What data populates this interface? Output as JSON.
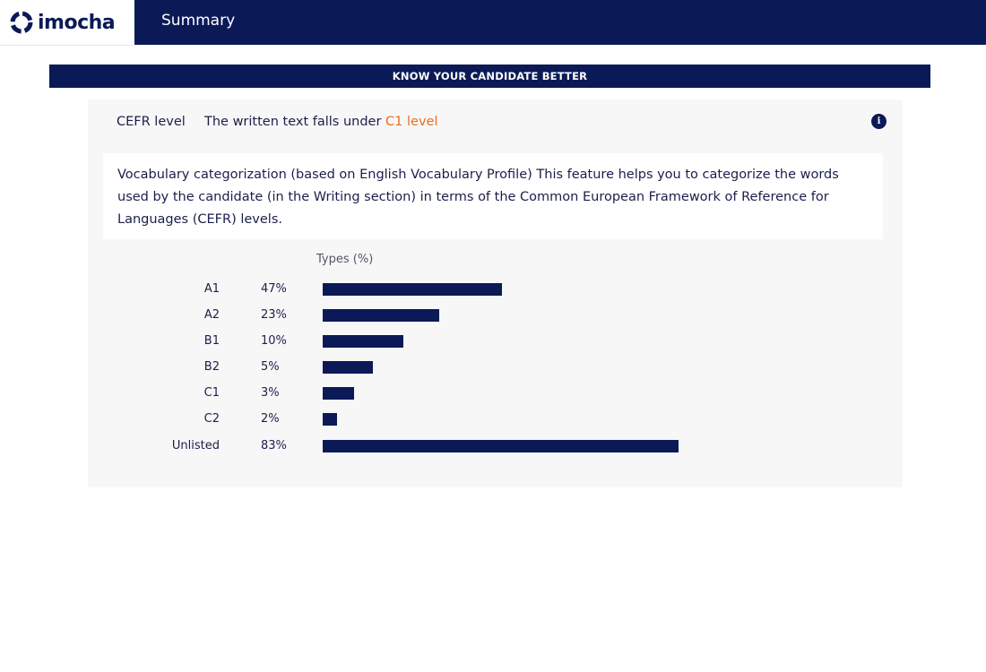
{
  "header": {
    "logo_text": "imocha",
    "logo_icon": "imocha-logo-icon",
    "page_title": "Summary"
  },
  "banner": {
    "title": "KNOW YOUR CANDIDATE BETTER"
  },
  "cefr": {
    "label": "CEFR level",
    "sentence_prefix": "The written text falls under ",
    "level": "C1 level",
    "info_icon": "info-icon",
    "info_glyph": "i"
  },
  "description": "Vocabulary categorization (based on English Vocabulary Profile) This feature helps you to categorize the words used by the candidate (in the Writing section) in terms of the Common European Framework of Reference for Languages (CEFR) levels.",
  "chart_data": {
    "type": "bar",
    "orientation": "horizontal",
    "column_header": "Types (%)",
    "categories": [
      "A1",
      "A2",
      "B1",
      "B2",
      "C1",
      "C2",
      "Unlisted"
    ],
    "values": [
      47,
      23,
      10,
      5,
      3,
      2,
      83
    ],
    "value_labels": [
      "47%",
      "23%",
      "10%",
      "5%",
      "3%",
      "2%",
      "83%"
    ],
    "bar_lengths_relative": [
      200,
      130,
      90,
      56,
      35,
      16,
      397
    ],
    "bar_color": "#0b1a57"
  },
  "colors": {
    "brand_navy": "#0b1a57",
    "accent_orange": "#ef6b1d",
    "panel_bg": "#f7f7f7"
  }
}
